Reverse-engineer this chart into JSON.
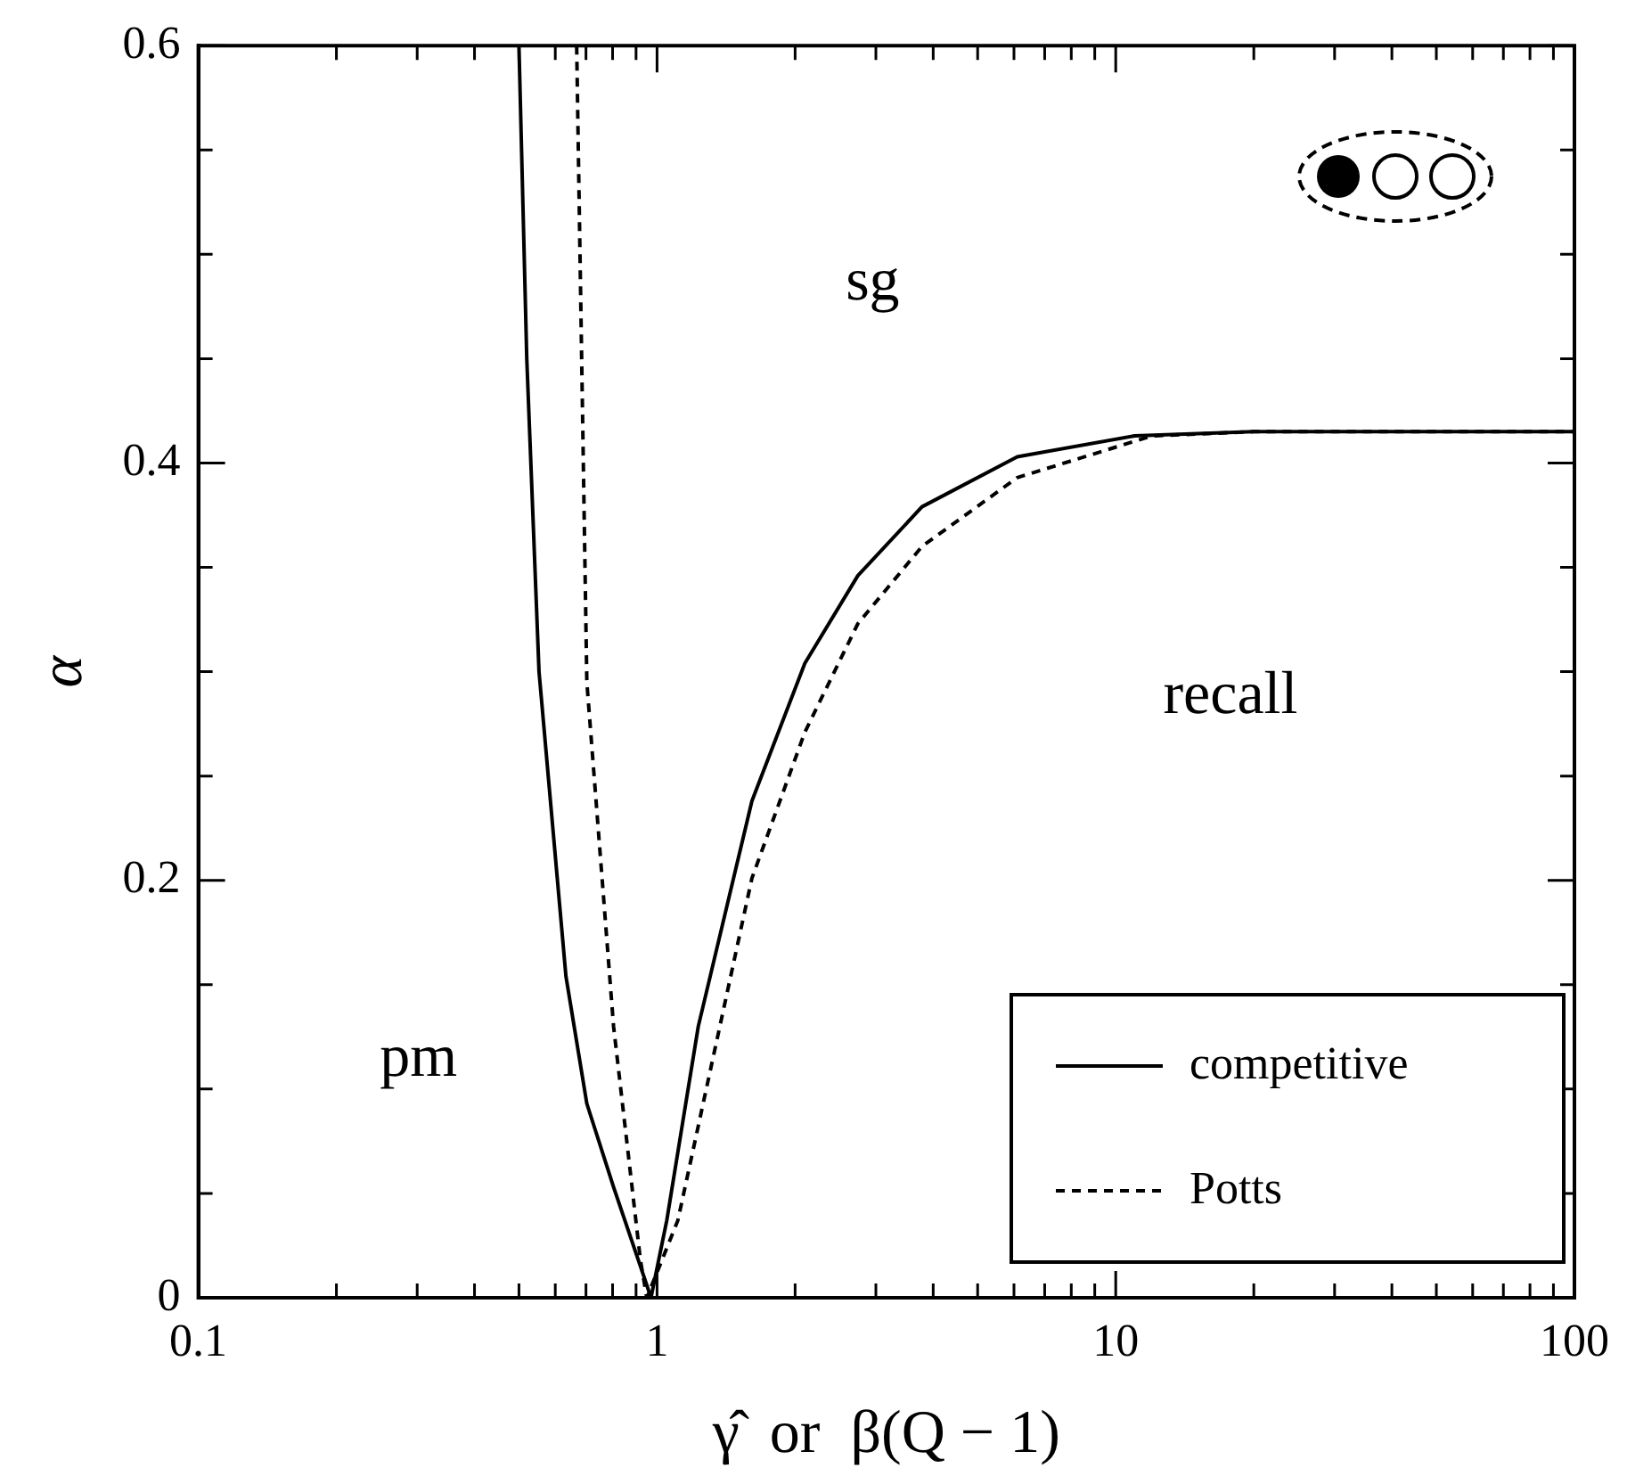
{
  "chart_data": {
    "type": "line",
    "xlabel": "γ̂  or  β(Q − 1)",
    "ylabel": "α",
    "annotations": [
      "pm",
      "sg",
      "recall"
    ],
    "log": "x",
    "grid": false,
    "legend": "bottom right",
    "marker": "none",
    "xlim": [
      0.1,
      100
    ],
    "xticks": [
      0.1,
      {
        "value": 0.2,
        "label": null
      },
      {
        "value": 0.3,
        "label": null
      },
      {
        "value": 0.4,
        "label": null
      },
      {
        "value": 0.5,
        "label": null
      },
      {
        "value": 0.6,
        "label": null
      },
      {
        "value": 0.7,
        "label": null
      },
      {
        "value": 0.8,
        "label": null
      },
      {
        "value": 0.9,
        "label": null
      },
      1,
      {
        "value": 2,
        "label": null
      },
      {
        "value": 3,
        "label": null
      },
      {
        "value": 4,
        "label": null
      },
      {
        "value": 5,
        "label": null
      },
      {
        "value": 6,
        "label": null
      },
      {
        "value": 7,
        "label": null
      },
      {
        "value": 8,
        "label": null
      },
      {
        "value": 9,
        "label": null
      },
      10,
      {
        "value": 20,
        "label": null
      },
      {
        "value": 30,
        "label": null
      },
      {
        "value": 40,
        "label": null
      },
      {
        "value": 50,
        "label": null
      },
      {
        "value": 60,
        "label": null
      },
      {
        "value": 70,
        "label": null
      },
      {
        "value": 80,
        "label": null
      },
      {
        "value": 90,
        "label": null
      },
      100
    ],
    "ylim": [
      0,
      0.6
    ],
    "yticks": [
      0,
      {
        "value": 0.05,
        "label": null
      },
      {
        "value": 0.1,
        "label": null
      },
      {
        "value": 0.15,
        "label": null
      },
      0.2,
      {
        "value": 0.25,
        "label": null
      },
      {
        "value": 0.3,
        "label": null
      },
      {
        "value": 0.35,
        "label": null
      },
      0.4,
      {
        "value": 0.45,
        "label": null
      },
      {
        "value": 0.5,
        "label": null
      },
      {
        "value": 0.55,
        "label": null
      },
      0.6
    ],
    "series": [
      {
        "name": "competitive",
        "color": "#000000",
        "line_style": "solid",
        "x": [
          0.5,
          0.52,
          0.553,
          0.633,
          0.703,
          0.804,
          0.94,
          0.97,
          1.05,
          1.23,
          1.61,
          2.1,
          2.74,
          3.78,
          6.1,
          11,
          20,
          100
        ],
        "values": [
          0.6,
          0.45,
          0.3,
          0.154,
          0.093,
          0.053,
          0.009,
          0,
          0.037,
          0.13,
          0.238,
          0.304,
          0.346,
          0.379,
          0.403,
          0.413,
          0.415,
          0.415
        ]
      },
      {
        "name": "Potts",
        "color": "#000000",
        "line_style": "dashed",
        "x": [
          0.668,
          0.703,
          0.804,
          0.92,
          0.95,
          1.11,
          1.61,
          2.1,
          2.74,
          3.78,
          6.1,
          12,
          20,
          100
        ],
        "values": [
          0.6,
          0.295,
          0.13,
          0.018,
          0,
          0.037,
          0.201,
          0.271,
          0.323,
          0.36,
          0.393,
          0.413,
          0.415,
          0.415
        ]
      }
    ]
  }
}
